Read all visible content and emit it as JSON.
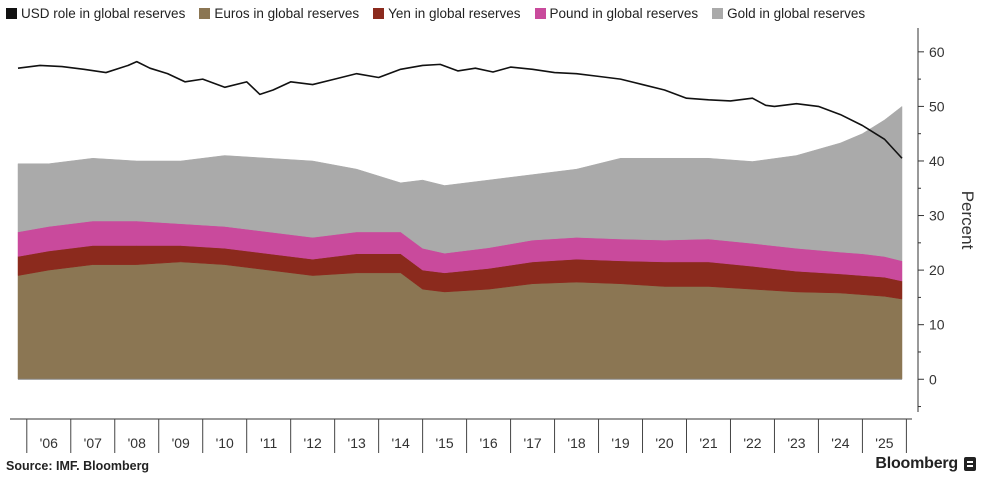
{
  "chart_data": {
    "type": "area",
    "title": "",
    "xlabel": "",
    "ylabel": "Percent",
    "ylim": [
      -6,
      64
    ],
    "xlim": [
      2005.8,
      2025.9
    ],
    "yticks": [
      0,
      10,
      20,
      30,
      40,
      50,
      60
    ],
    "ytick_labels": [
      "0",
      "10",
      "20",
      "30",
      "40",
      "50",
      "60"
    ],
    "xtick_labels": [
      {
        "year": 2006,
        "label": "'06"
      },
      {
        "year": 2007,
        "label": "'07"
      },
      {
        "year": 2008,
        "label": "'08"
      },
      {
        "year": 2009,
        "label": "'09"
      },
      {
        "year": 2010,
        "label": "'10"
      },
      {
        "year": 2011,
        "label": "'11"
      },
      {
        "year": 2012,
        "label": "'12"
      },
      {
        "year": 2013,
        "label": "'13"
      },
      {
        "year": 2014,
        "label": "'14"
      },
      {
        "year": 2015,
        "label": "'15"
      },
      {
        "year": 2016,
        "label": "'16"
      },
      {
        "year": 2017,
        "label": "'17"
      },
      {
        "year": 2018,
        "label": "'18"
      },
      {
        "year": 2019,
        "label": "'19"
      },
      {
        "year": 2020,
        "label": "'20"
      },
      {
        "year": 2021,
        "label": "'21"
      },
      {
        "year": 2022,
        "label": "'22"
      },
      {
        "year": 2023,
        "label": "'23"
      },
      {
        "year": 2024,
        "label": "'24"
      },
      {
        "year": 2025,
        "label": "'25"
      }
    ],
    "x": [
      2005.8,
      2006.5,
      2007.5,
      2008.5,
      2009.5,
      2010.5,
      2011.5,
      2012.5,
      2013.5,
      2014.5,
      2015.0,
      2015.5,
      2016.5,
      2017.5,
      2018.5,
      2019.5,
      2020.5,
      2021.5,
      2022.5,
      2023.5,
      2024.5,
      2025.0,
      2025.5,
      2025.9
    ],
    "stacked_series": [
      {
        "name": "Euros in global reserves",
        "color": "#8b7653",
        "values": [
          19.0,
          20.0,
          21.0,
          21.0,
          21.5,
          21.0,
          20.0,
          19.0,
          19.5,
          19.5,
          16.5,
          16.0,
          16.5,
          17.5,
          17.8,
          17.5,
          17.0,
          17.0,
          16.5,
          16.0,
          15.8,
          15.5,
          15.2,
          14.7
        ]
      },
      {
        "name": "Yen in global reserves",
        "color": "#8b2a1d",
        "values": [
          3.5,
          3.5,
          3.5,
          3.5,
          3.0,
          3.0,
          3.0,
          3.0,
          3.5,
          3.5,
          3.5,
          3.5,
          3.8,
          4.0,
          4.2,
          4.2,
          4.5,
          4.5,
          4.2,
          3.8,
          3.5,
          3.5,
          3.5,
          3.3
        ]
      },
      {
        "name": "Pound in global reserves",
        "color": "#c94a9c",
        "values": [
          4.5,
          4.5,
          4.5,
          4.5,
          4.0,
          4.0,
          4.0,
          4.0,
          4.0,
          4.0,
          4.0,
          3.6,
          3.8,
          4.0,
          4.0,
          4.0,
          4.0,
          4.2,
          4.2,
          4.2,
          4.0,
          4.0,
          3.8,
          3.7
        ]
      },
      {
        "name": "Gold in global reserves",
        "color": "#aaaaaa",
        "values": [
          12.5,
          11.5,
          11.5,
          11.0,
          11.5,
          13.0,
          13.5,
          14.0,
          11.5,
          9.0,
          12.5,
          12.4,
          12.4,
          12.0,
          12.5,
          14.8,
          15.0,
          14.8,
          15.0,
          17.0,
          20.0,
          22.0,
          25.0,
          28.3
        ]
      }
    ],
    "line_series": {
      "name": "USD role in global reserves",
      "color": "#111111",
      "x": [
        2005.8,
        2006.3,
        2006.8,
        2007.3,
        2007.8,
        2008.3,
        2008.5,
        2008.8,
        2009.2,
        2009.6,
        2010.0,
        2010.5,
        2011.0,
        2011.3,
        2011.6,
        2012.0,
        2012.5,
        2013.0,
        2013.5,
        2014.0,
        2014.5,
        2015.0,
        2015.4,
        2015.8,
        2016.2,
        2016.6,
        2017.0,
        2017.5,
        2018.0,
        2018.5,
        2019.0,
        2019.5,
        2020.0,
        2020.5,
        2021.0,
        2021.5,
        2022.0,
        2022.5,
        2022.8,
        2023.0,
        2023.5,
        2024.0,
        2024.5,
        2025.0,
        2025.5,
        2025.9
      ],
      "values": [
        57.0,
        57.5,
        57.3,
        56.8,
        56.2,
        57.5,
        58.2,
        57.0,
        56.0,
        54.5,
        55.0,
        53.5,
        54.5,
        52.2,
        53.0,
        54.5,
        54.0,
        55.0,
        56.0,
        55.3,
        56.8,
        57.5,
        57.7,
        56.5,
        57.0,
        56.3,
        57.2,
        56.8,
        56.2,
        56.0,
        55.5,
        55.0,
        54.0,
        53.0,
        51.5,
        51.2,
        51.0,
        51.5,
        50.2,
        50.0,
        50.5,
        50.0,
        48.5,
        46.5,
        44.0,
        40.5
      ]
    },
    "legend_position": "top",
    "grid": false
  },
  "footer": {
    "source": "Source: IMF. Bloomberg",
    "brand": "Bloomberg"
  }
}
